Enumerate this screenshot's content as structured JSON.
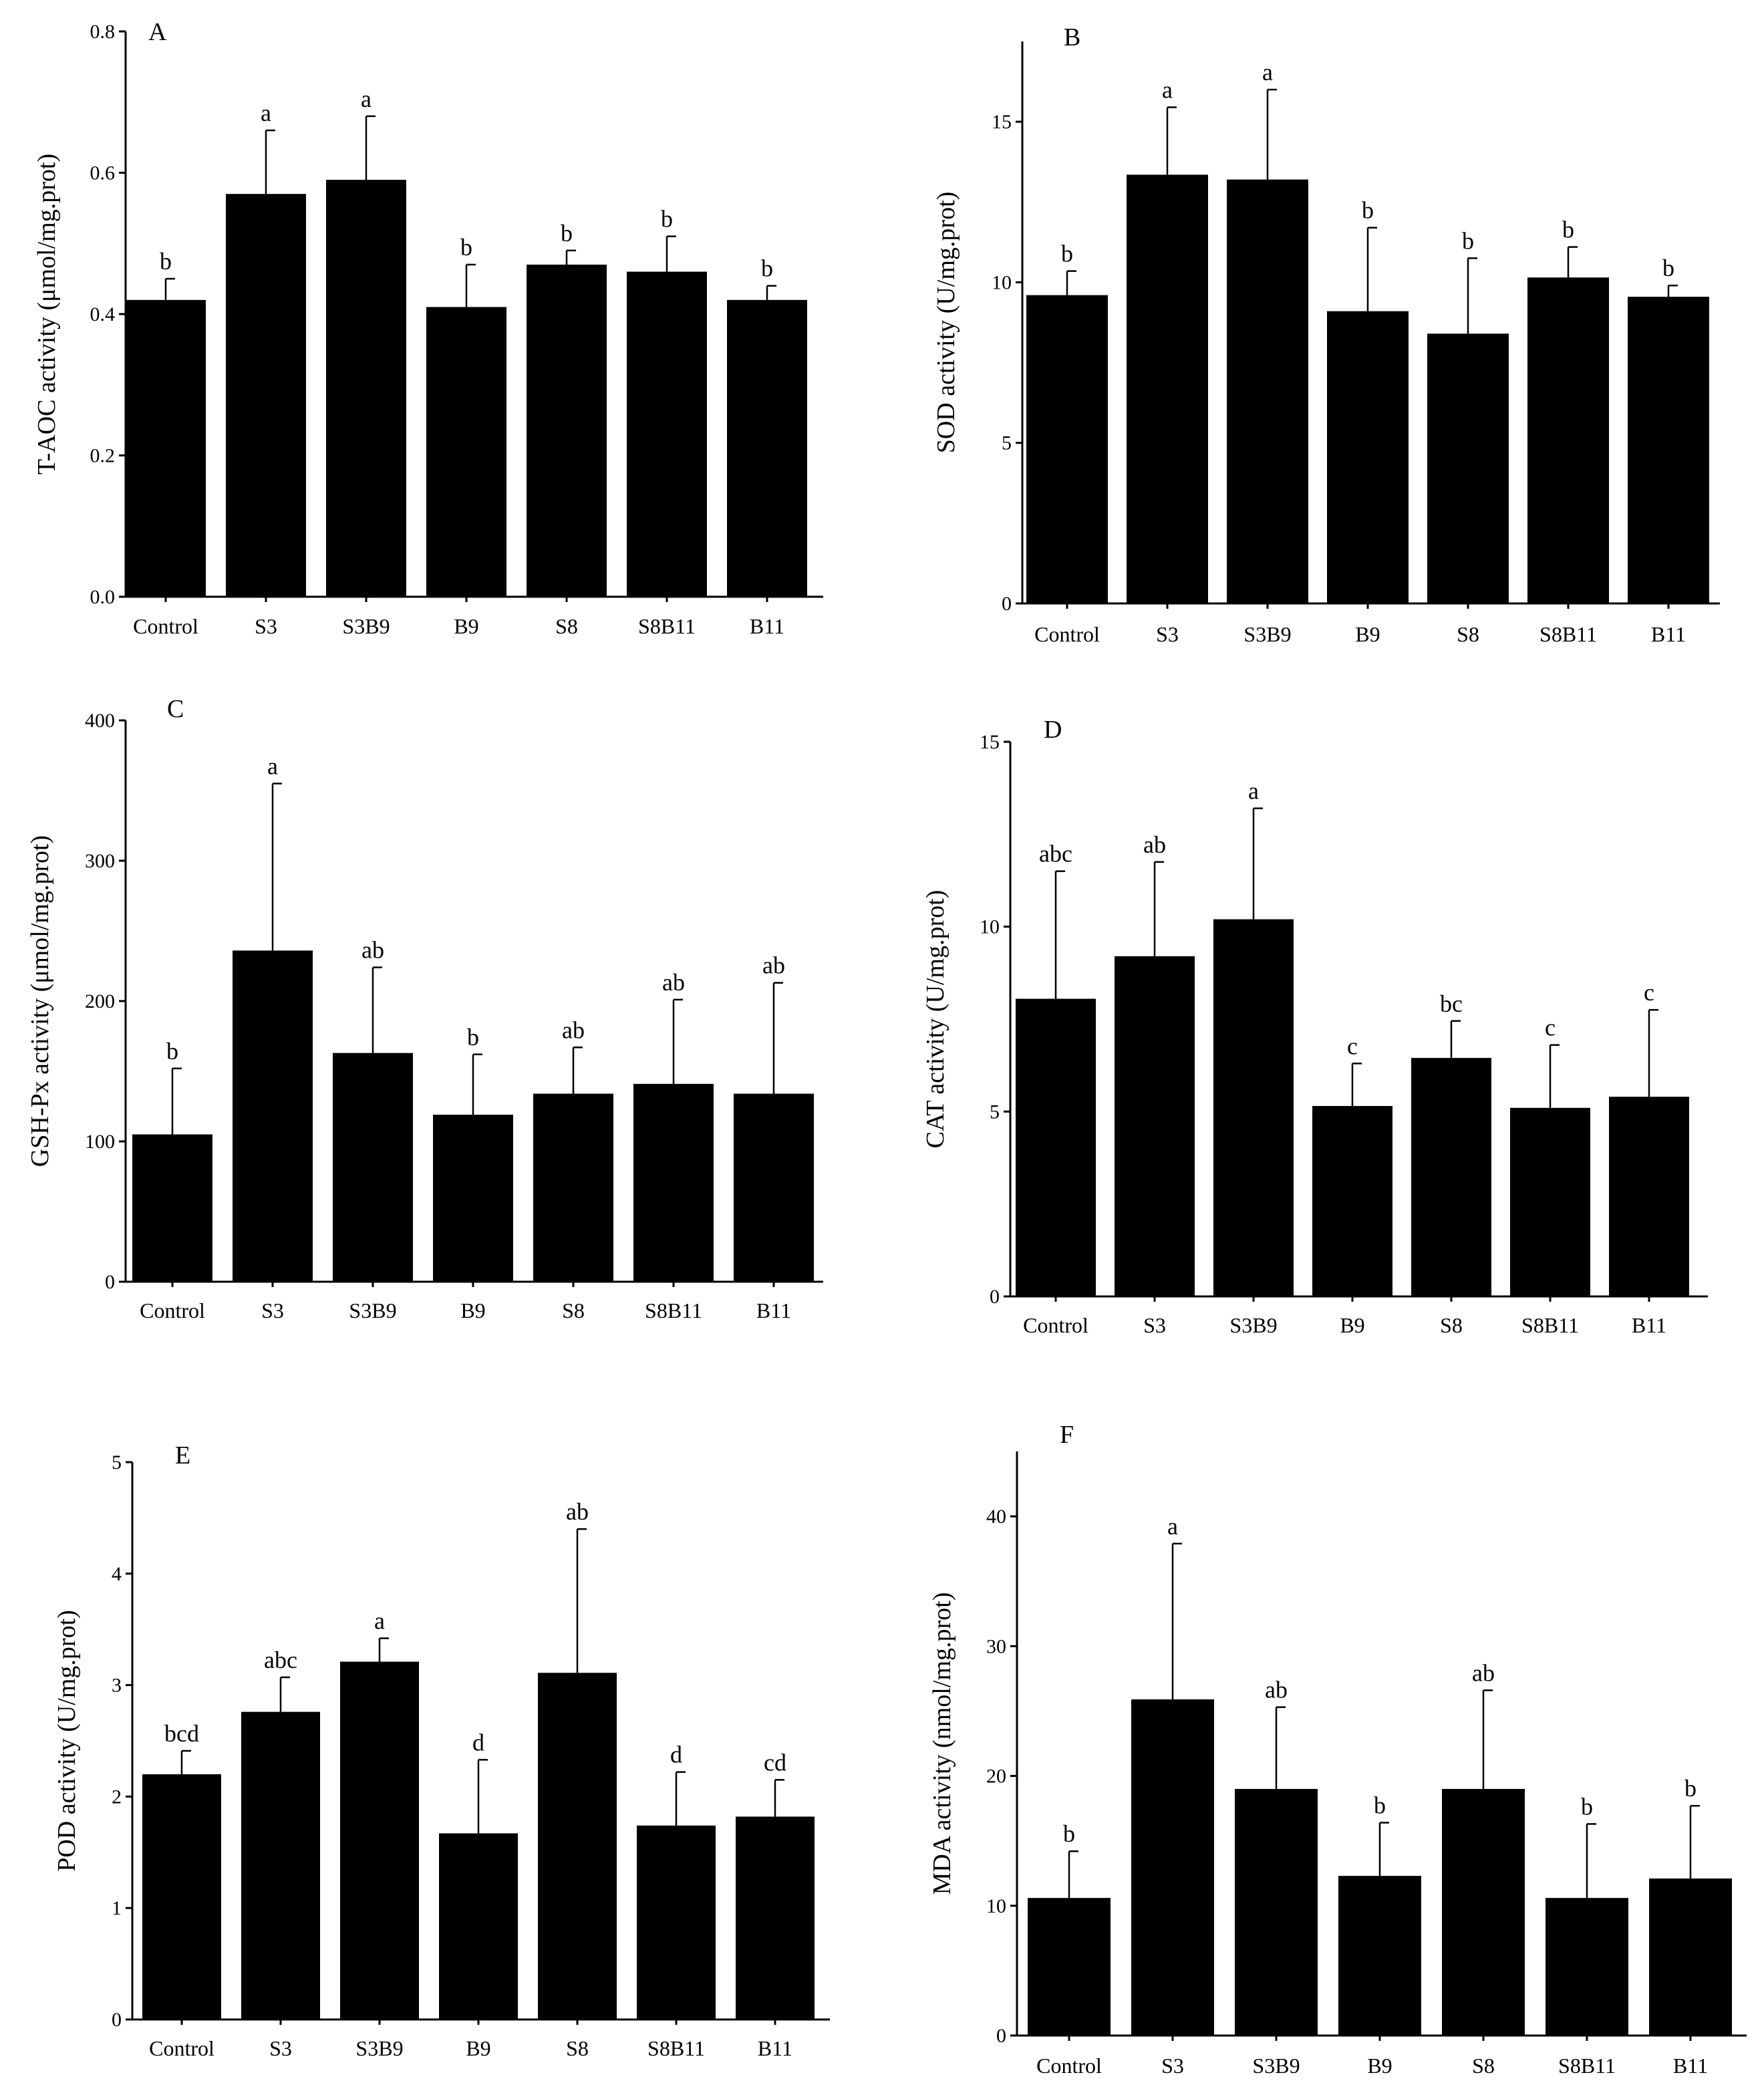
{
  "chart_data": [
    {
      "type": "bar",
      "panel_label": "A",
      "categories": [
        "Control",
        "S3",
        "S3B9",
        "B9",
        "S8",
        "S8B11",
        "B11"
      ],
      "values": [
        0.42,
        0.57,
        0.59,
        0.41,
        0.47,
        0.46,
        0.42
      ],
      "errors": [
        0.03,
        0.09,
        0.09,
        0.06,
        0.02,
        0.05,
        0.02
      ],
      "significance": [
        "b",
        "a",
        "a",
        "b",
        "b",
        "b",
        "b"
      ],
      "ylabel": "T-AOC activity (μmol/mg.prot)",
      "ylim": [
        0,
        0.8
      ],
      "yticks": [
        "0.0",
        "0.2",
        "0.4",
        "0.6",
        "0.8"
      ],
      "bar_color": "#000000",
      "grid": false
    },
    {
      "type": "bar",
      "panel_label": "B",
      "categories": [
        "Control",
        "S3",
        "S3B9",
        "B9",
        "S8",
        "S8B11",
        "B11"
      ],
      "values": [
        9.6,
        13.35,
        13.2,
        9.1,
        8.4,
        10.15,
        9.55
      ],
      "errors": [
        0.75,
        2.1,
        2.8,
        2.6,
        2.35,
        0.95,
        0.35
      ],
      "significance": [
        "b",
        "a",
        "a",
        "b",
        "b",
        "b",
        "b"
      ],
      "ylabel": "SOD activity (U/mg.prot)",
      "ylim": [
        0,
        17.5
      ],
      "yticks": [
        "0",
        "5",
        "10",
        "15"
      ],
      "bar_color": "#000000",
      "grid": false
    },
    {
      "type": "bar",
      "panel_label": "C",
      "categories": [
        "Control",
        "S3",
        "S3B9",
        "B9",
        "S8",
        "S8B11",
        "B11"
      ],
      "values": [
        105,
        236,
        163,
        119,
        134,
        141,
        134
      ],
      "errors": [
        47,
        119,
        61,
        43,
        33,
        60,
        79
      ],
      "significance": [
        "b",
        "a",
        "ab",
        "b",
        "ab",
        "ab",
        "ab"
      ],
      "ylabel": "GSH-Px activity (μmol/mg.prot)",
      "ylim": [
        0,
        400
      ],
      "yticks": [
        "0",
        "100",
        "200",
        "300",
        "400"
      ],
      "bar_color": "#000000",
      "grid": false
    },
    {
      "type": "bar",
      "panel_label": "D",
      "categories": [
        "Control",
        "S3",
        "S3B9",
        "B9",
        "S8",
        "S8B11",
        "B11"
      ],
      "values": [
        8.05,
        9.2,
        10.2,
        5.15,
        6.45,
        5.1,
        5.4
      ],
      "errors": [
        3.45,
        2.55,
        3.0,
        1.15,
        1.0,
        1.7,
        2.35
      ],
      "significance": [
        "abc",
        "ab",
        "a",
        "c",
        "bc",
        "c",
        "c"
      ],
      "ylabel": "CAT activity (U/mg.prot)",
      "ylim": [
        0,
        15
      ],
      "yticks": [
        "0",
        "5",
        "10",
        "15"
      ],
      "bar_color": "#000000",
      "grid": false
    },
    {
      "type": "bar",
      "panel_label": "E",
      "categories": [
        "Control",
        "S3",
        "S3B9",
        "B9",
        "S8",
        "S8B11",
        "B11"
      ],
      "values": [
        2.2,
        2.76,
        3.21,
        1.67,
        3.11,
        1.74,
        1.82
      ],
      "errors": [
        0.21,
        0.31,
        0.21,
        0.66,
        1.29,
        0.48,
        0.33
      ],
      "significance": [
        "bcd",
        "abc",
        "a",
        "d",
        "ab",
        "d",
        "cd"
      ],
      "ylabel": "POD activity (U/mg.prot)",
      "ylim": [
        0,
        5
      ],
      "yticks": [
        "0",
        "1",
        "2",
        "3",
        "4",
        "5"
      ],
      "bar_color": "#000000",
      "grid": false
    },
    {
      "type": "bar",
      "panel_label": "F",
      "categories": [
        "Control",
        "S3",
        "S3B9",
        "B9",
        "S8",
        "S8B11",
        "B11"
      ],
      "values": [
        10.6,
        25.9,
        19.0,
        12.3,
        19.0,
        10.6,
        12.1
      ],
      "errors": [
        3.6,
        12.0,
        6.3,
        4.1,
        7.6,
        5.7,
        5.6
      ],
      "significance": [
        "b",
        "a",
        "ab",
        "b",
        "ab",
        "b",
        "b"
      ],
      "ylabel": "MDA activity (nmol/mg.prot)",
      "ylim": [
        0,
        45
      ],
      "yticks": [
        "0",
        "10",
        "20",
        "30",
        "40"
      ],
      "bar_color": "#000000",
      "grid": false
    }
  ]
}
